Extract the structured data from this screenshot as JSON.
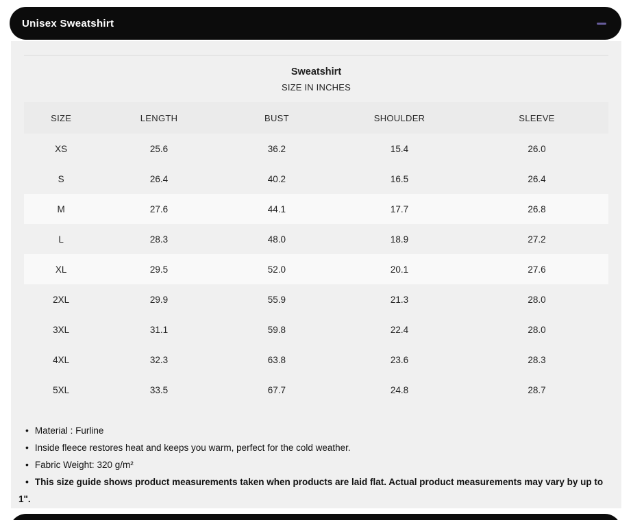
{
  "accordion": {
    "title": "Unisex Sweatshirt",
    "state": "expanded"
  },
  "size_chart": {
    "title": "Sweatshirt",
    "subtitle": "SIZE IN INCHES",
    "columns": [
      "SIZE",
      "LENGTH",
      "BUST",
      "SHOULDER",
      "SLEEVE"
    ],
    "rows": [
      {
        "values": [
          "XS",
          "25.6",
          "36.2",
          "15.4",
          "26.0"
        ],
        "light": false
      },
      {
        "values": [
          "S",
          "26.4",
          "40.2",
          "16.5",
          "26.4"
        ],
        "light": false
      },
      {
        "values": [
          "M",
          "27.6",
          "44.1",
          "17.7",
          "26.8"
        ],
        "light": true
      },
      {
        "values": [
          "L",
          "28.3",
          "48.0",
          "18.9",
          "27.2"
        ],
        "light": false
      },
      {
        "values": [
          "XL",
          "29.5",
          "52.0",
          "20.1",
          "27.6"
        ],
        "light": true
      },
      {
        "values": [
          "2XL",
          "29.9",
          "55.9",
          "21.3",
          "28.0"
        ],
        "light": false
      },
      {
        "values": [
          "3XL",
          "31.1",
          "59.8",
          "22.4",
          "28.0"
        ],
        "light": false
      },
      {
        "values": [
          "4XL",
          "32.3",
          "63.8",
          "23.6",
          "28.3"
        ],
        "light": false
      },
      {
        "values": [
          "5XL",
          "33.5",
          "67.7",
          "24.8",
          "28.7"
        ],
        "light": false
      }
    ]
  },
  "notes": {
    "items": [
      {
        "text": "Material : Furline",
        "bold": false
      },
      {
        "text": "Inside fleece restores heat and keeps you warm, perfect for the cold weather.",
        "bold": false
      },
      {
        "text": "Fabric Weight: 320 g/m²",
        "bold": false
      },
      {
        "text": "This size guide shows product measurements taken when products are laid flat. Actual product measurements may vary by up to 1\".",
        "bold": true
      }
    ],
    "bullet_glyph": "•"
  },
  "colors": {
    "accordion_bar": "#0c0c0c",
    "collapse_icon_accent": "#665c9b",
    "panel_background": "#f0f0f0",
    "header_row_background": "#ebebeb",
    "highlight_row_background": "#f9f9f9"
  }
}
